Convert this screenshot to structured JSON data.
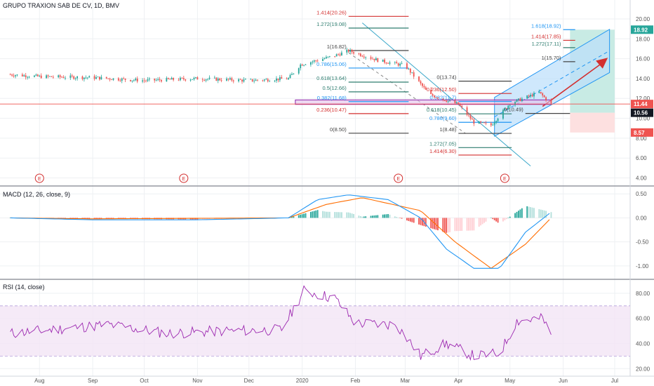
{
  "title": "GRUPO TRAXION SAB DE CV, 1D, BMV",
  "colors": {
    "up": "#26a69a",
    "down": "#ef5350",
    "grid": "#eef0f3",
    "axis_text": "#555555",
    "macd_line": "#2196f3",
    "signal_line": "#ff6d00",
    "rsi_line": "#9c27b0",
    "rsi_band": "#f3e5f5",
    "channel_fill": "#bbdefb",
    "target_green": "#c8ebe4",
    "stop_red": "#fde0e0",
    "price_line": "#ef5350",
    "fib_green": "#2e7d6f",
    "fib_red": "#d32f2f",
    "fib_gray": "#444444",
    "fib_blue": "#2196f3"
  },
  "x_axis": {
    "months": [
      "Aug",
      "Sep",
      "Oct",
      "Nov",
      "Dec",
      "2020",
      "Feb",
      "Mar",
      "Apr",
      "May",
      "Jun",
      "Jul"
    ]
  },
  "earnings_marker": "E",
  "price_axis": {
    "ticks": [
      "20.00",
      "18.00",
      "16.00",
      "14.00",
      "12.00",
      "10.00",
      "8.00",
      "6.00",
      "4.00"
    ],
    "badges": [
      {
        "value": "18.92",
        "color": "#26a69a"
      },
      {
        "value": "11.44",
        "color": "#ef5350"
      },
      {
        "value": "10.56",
        "color": "#131722"
      },
      {
        "value": "8.57",
        "color": "#ef5350"
      }
    ]
  },
  "fib_labels": [
    {
      "text": "1.414(20.26)",
      "color": "#d32f2f"
    },
    {
      "text": "1.272(19.08)",
      "color": "#2e7d6f"
    },
    {
      "text": "1(16.82)",
      "color": "#444444"
    },
    {
      "text": "0.786(15.06)",
      "color": "#2196f3"
    },
    {
      "text": "0.618(13.64)",
      "color": "#2e7d6f"
    },
    {
      "text": "0.5(12.66)",
      "color": "#2e7d6f"
    },
    {
      "text": "0.382(11.68)",
      "color": "#2196f3"
    },
    {
      "text": "0.236(10.47)",
      "color": "#d32f2f"
    },
    {
      "text": "0(8.50)",
      "color": "#444444"
    },
    {
      "text": "0(13.74)",
      "color": "#444444"
    },
    {
      "text": "0.236(12.50)",
      "color": "#d32f2f"
    },
    {
      "text": "0.382(11.7)",
      "color": "#2196f3"
    },
    {
      "text": "0.618(10.45)",
      "color": "#2e7d6f"
    },
    {
      "text": "0.786(9.60)",
      "color": "#2196f3"
    },
    {
      "text": "1(8.48)",
      "color": "#444444"
    },
    {
      "text": "1.272(7.05)",
      "color": "#2e7d6f"
    },
    {
      "text": "1.414(6.30)",
      "color": "#d32f2f"
    },
    {
      "text": "0(10.49)",
      "color": "#444444"
    },
    {
      "text": "1(15.70)",
      "color": "#444444"
    },
    {
      "text": "1.272(17.11)",
      "color": "#2e7d6f"
    },
    {
      "text": "1.414(17.85)",
      "color": "#d32f2f"
    },
    {
      "text": "1.618(18.92)",
      "color": "#2196f3"
    }
  ],
  "macd_panel": {
    "label": "MACD (12, 26, close, 9)",
    "ticks": [
      "0.50",
      "0.00",
      "-0.50",
      "-1.00"
    ]
  },
  "rsi_panel": {
    "label": "RSI (14, close)",
    "ticks": [
      "80.00",
      "60.00",
      "40.00",
      "20.00"
    ]
  },
  "chart_data": [
    {
      "type": "candlestick",
      "title": "GRUPO TRAXION SAB DE CV, 1D, BMV",
      "ylim": [
        4,
        21
      ],
      "y_ticks": [
        4,
        6,
        8,
        10,
        12,
        14,
        16,
        18,
        20
      ],
      "x_ticks": [
        "Aug",
        "Sep",
        "Oct",
        "Nov",
        "Dec",
        "2020",
        "Feb",
        "Mar",
        "Apr",
        "May",
        "Jun",
        "Jul"
      ],
      "close_path": [
        {
          "x": "2019-07-15",
          "y": 14.4
        },
        {
          "x": "2019-08-01",
          "y": 14.2
        },
        {
          "x": "2019-09-01",
          "y": 14.1
        },
        {
          "x": "2019-10-01",
          "y": 13.8
        },
        {
          "x": "2019-11-01",
          "y": 14.0
        },
        {
          "x": "2019-12-01",
          "y": 13.8
        },
        {
          "x": "2019-12-24",
          "y": 14.0
        },
        {
          "x": "2019-12-31",
          "y": 15.4
        },
        {
          "x": "2020-01-20",
          "y": 16.3
        },
        {
          "x": "2020-01-28",
          "y": 16.8
        },
        {
          "x": "2020-02-15",
          "y": 15.8
        },
        {
          "x": "2020-03-01",
          "y": 15.3
        },
        {
          "x": "2020-03-15",
          "y": 12.4
        },
        {
          "x": "2020-04-01",
          "y": 11.4
        },
        {
          "x": "2020-04-10",
          "y": 9.6
        },
        {
          "x": "2020-04-20",
          "y": 9.3
        },
        {
          "x": "2020-05-01",
          "y": 11.5
        },
        {
          "x": "2020-05-18",
          "y": 12.6
        },
        {
          "x": "2020-05-25",
          "y": 11.44
        }
      ],
      "last_price": 11.44,
      "price_levels": [
        18.92,
        11.44,
        10.56,
        8.57
      ]
    },
    {
      "type": "line",
      "title": "MACD (12, 26, close, 9)",
      "ylim": [
        -1.2,
        0.6
      ],
      "y_ticks": [
        -1.0,
        -0.5,
        0.0,
        0.5
      ],
      "series": [
        {
          "name": "MACD",
          "values": [
            {
              "x": "2019-07-15",
              "y": 0.0
            },
            {
              "x": "2019-09-01",
              "y": -0.04
            },
            {
              "x": "2019-11-01",
              "y": -0.04
            },
            {
              "x": "2019-12-24",
              "y": 0.0
            },
            {
              "x": "2020-01-10",
              "y": 0.38
            },
            {
              "x": "2020-01-28",
              "y": 0.48
            },
            {
              "x": "2020-02-20",
              "y": 0.38
            },
            {
              "x": "2020-03-10",
              "y": 0.0
            },
            {
              "x": "2020-03-25",
              "y": -0.65
            },
            {
              "x": "2020-04-10",
              "y": -1.05
            },
            {
              "x": "2020-04-25",
              "y": -1.05
            },
            {
              "x": "2020-05-10",
              "y": -0.3
            },
            {
              "x": "2020-05-25",
              "y": 0.12
            }
          ]
        },
        {
          "name": "Signal",
          "values": [
            {
              "x": "2019-07-15",
              "y": 0.0
            },
            {
              "x": "2019-09-01",
              "y": -0.02
            },
            {
              "x": "2019-12-24",
              "y": 0.0
            },
            {
              "x": "2020-01-15",
              "y": 0.28
            },
            {
              "x": "2020-02-05",
              "y": 0.42
            },
            {
              "x": "2020-03-10",
              "y": 0.15
            },
            {
              "x": "2020-03-30",
              "y": -0.5
            },
            {
              "x": "2020-04-20",
              "y": -1.05
            },
            {
              "x": "2020-05-10",
              "y": -0.55
            },
            {
              "x": "2020-05-25",
              "y": 0.0
            }
          ]
        }
      ]
    },
    {
      "type": "line",
      "title": "RSI (14, close)",
      "ylim": [
        15,
        90
      ],
      "y_ticks": [
        20,
        40,
        60,
        80
      ],
      "bands": [
        30,
        70
      ],
      "series": [
        {
          "name": "RSI",
          "values": [
            {
              "x": "2019-07-15",
              "y": 48
            },
            {
              "x": "2019-08-15",
              "y": 52
            },
            {
              "x": "2019-09-10",
              "y": 55
            },
            {
              "x": "2019-10-15",
              "y": 48
            },
            {
              "x": "2019-11-15",
              "y": 50
            },
            {
              "x": "2019-12-20",
              "y": 51
            },
            {
              "x": "2020-01-02",
              "y": 82
            },
            {
              "x": "2020-01-20",
              "y": 76
            },
            {
              "x": "2020-02-01",
              "y": 56
            },
            {
              "x": "2020-02-25",
              "y": 55
            },
            {
              "x": "2020-03-10",
              "y": 30
            },
            {
              "x": "2020-03-25",
              "y": 40
            },
            {
              "x": "2020-04-10",
              "y": 30
            },
            {
              "x": "2020-04-25",
              "y": 32
            },
            {
              "x": "2020-05-05",
              "y": 58
            },
            {
              "x": "2020-05-20",
              "y": 60
            },
            {
              "x": "2020-05-25",
              "y": 46
            }
          ]
        }
      ]
    }
  ]
}
